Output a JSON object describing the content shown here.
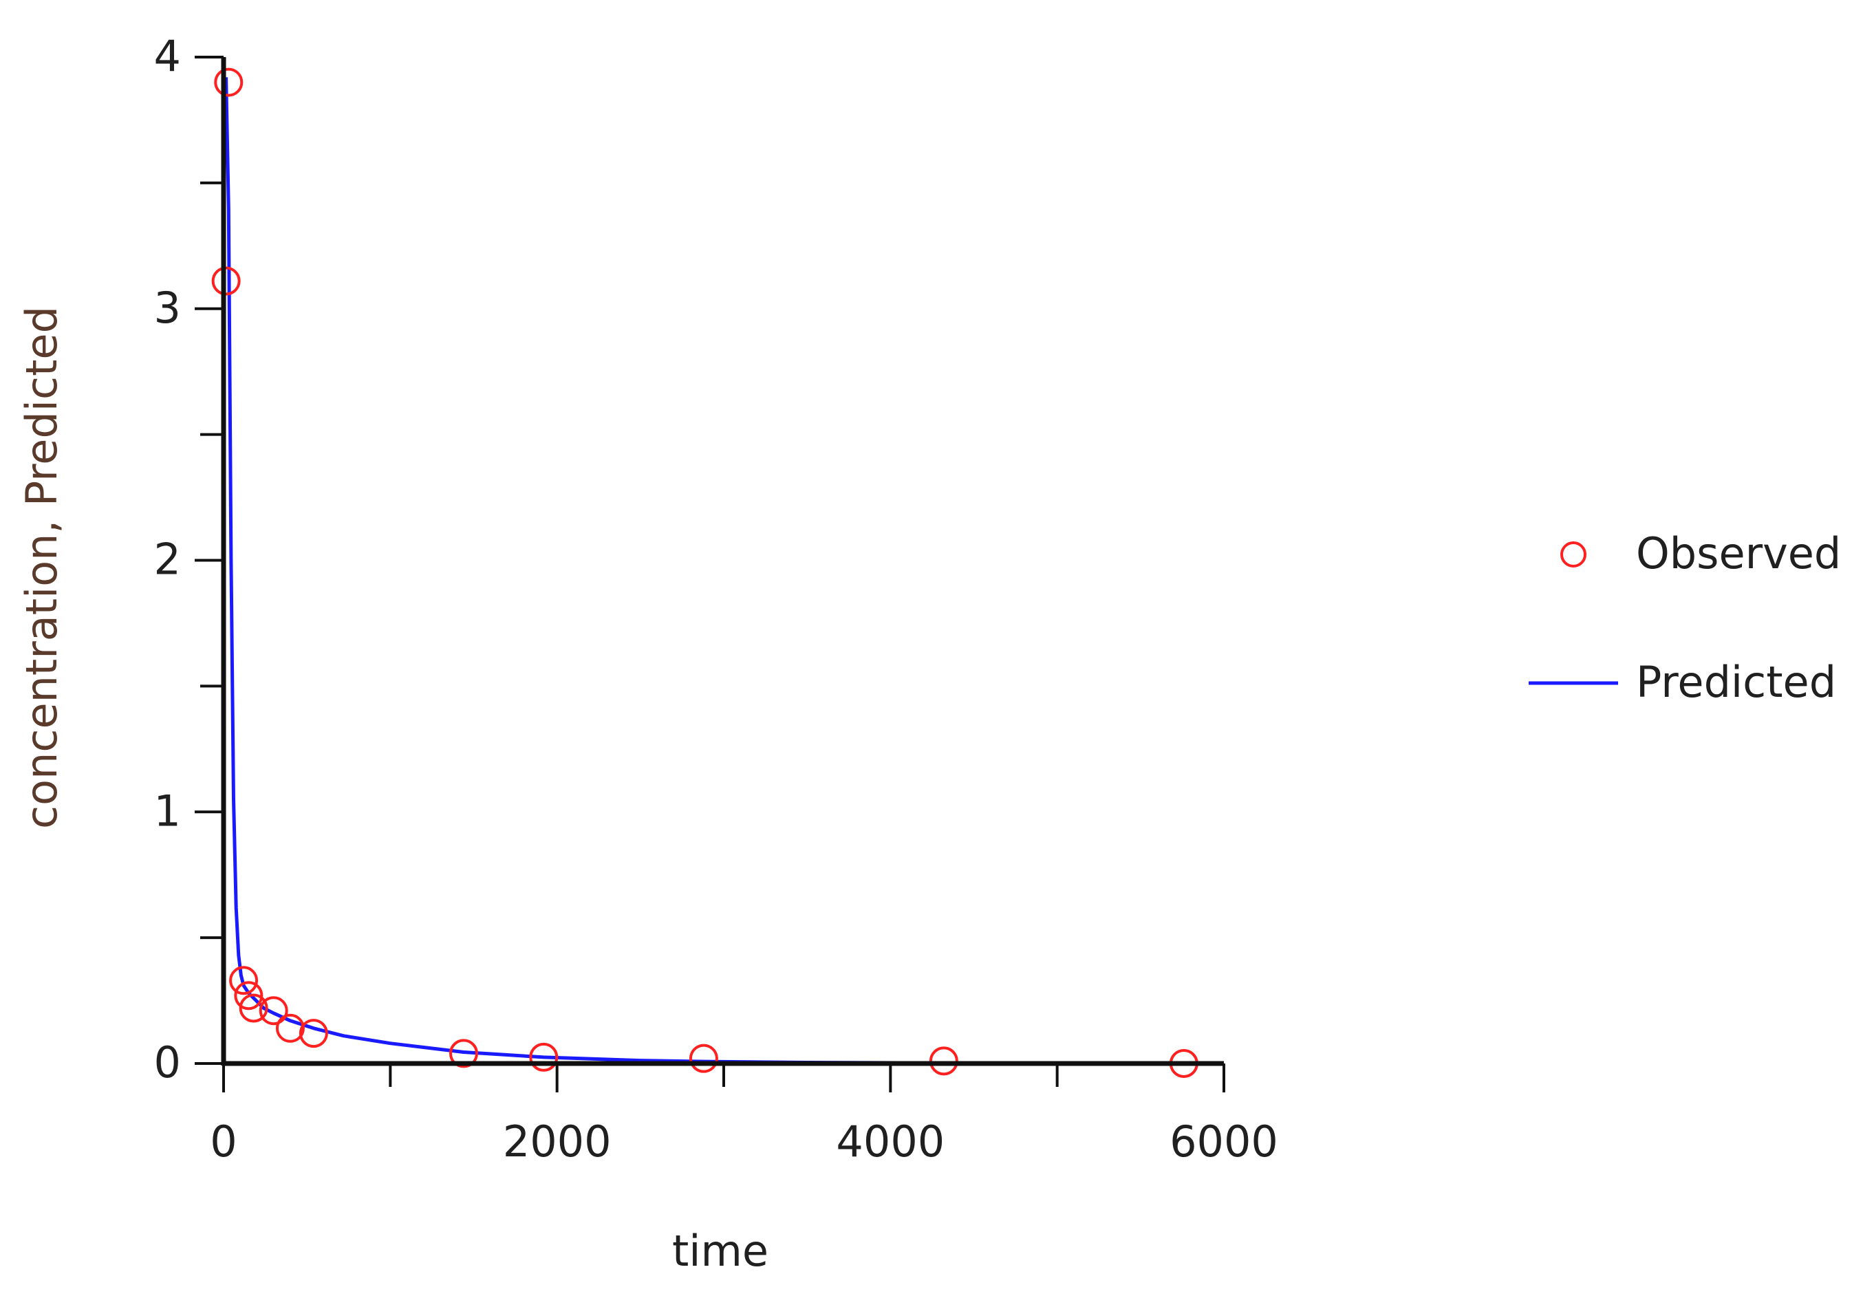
{
  "chart_data": {
    "type": "scatter",
    "title": "",
    "xlabel": "time",
    "ylabel": "concentration, Predicted",
    "xlim": [
      0,
      6000
    ],
    "ylim": [
      0,
      4
    ],
    "x_ticks": [
      0,
      2000,
      4000,
      6000
    ],
    "x_tick_labels": [
      "0",
      "2000",
      "4000",
      "6000"
    ],
    "x_minor_ticks": [
      1000,
      3000,
      5000
    ],
    "y_ticks": [
      0,
      1,
      2,
      3,
      4
    ],
    "y_tick_labels": [
      "0",
      "1",
      "2",
      "3",
      "4"
    ],
    "y_minor_ticks": [
      0.5,
      1.5,
      2.5,
      3.5
    ],
    "grid": false,
    "legend_position": "right",
    "series": [
      {
        "name": "Observed",
        "kind": "markers",
        "marker": "open-circle",
        "color": "#ff2020",
        "x": [
          30,
          15,
          120,
          150,
          180,
          300,
          400,
          540,
          1440,
          1920,
          2880,
          4320,
          5760
        ],
        "y": [
          3.9,
          3.11,
          0.33,
          0.27,
          0.22,
          0.21,
          0.14,
          0.12,
          0.04,
          0.025,
          0.02,
          0.01,
          0.0
        ]
      },
      {
        "name": "Predicted",
        "kind": "line",
        "color": "#1a1aff",
        "x": [
          15,
          30,
          45,
          60,
          75,
          90,
          105,
          120,
          150,
          180,
          240,
          300,
          400,
          540,
          720,
          1000,
          1440,
          1920,
          2500,
          2880,
          3500,
          4320,
          5000,
          5760
        ],
        "y": [
          3.92,
          3.4,
          2.0,
          1.05,
          0.62,
          0.43,
          0.35,
          0.31,
          0.28,
          0.26,
          0.22,
          0.2,
          0.17,
          0.14,
          0.11,
          0.08,
          0.045,
          0.025,
          0.012,
          0.008,
          0.004,
          0.002,
          0.001,
          0.0005
        ]
      }
    ]
  },
  "colors": {
    "axis": "#101010",
    "axis_title": "#5a3a2a",
    "observed": "#ff2020",
    "predicted": "#1a1aff"
  }
}
